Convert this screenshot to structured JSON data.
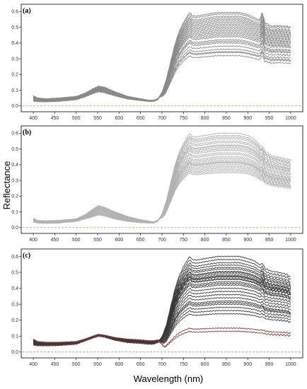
{
  "figure": {
    "ylabel": "Reflectance",
    "xlabel": "Wavelength (nm)"
  },
  "chart_data": [
    {
      "type": "line",
      "panel_label": "(a)",
      "xlim": [
        385,
        1015
      ],
      "ylim": [
        -0.01,
        0.62
      ],
      "xticks": [
        400,
        450,
        500,
        550,
        600,
        650,
        700,
        750,
        800,
        850,
        900,
        950,
        1000
      ],
      "yticks": [
        0.0,
        0.1,
        0.2,
        0.3,
        0.4,
        0.5,
        0.6
      ],
      "line_color": "#8a8a8a",
      "baseline": {
        "y": 0.0,
        "color": "#b5a642",
        "style": "dashed"
      },
      "profile": {
        "x": [
          400,
          410,
          430,
          460,
          500,
          520,
          540,
          552,
          565,
          590,
          620,
          650,
          670,
          680,
          690,
          700,
          710,
          720,
          730,
          740,
          750,
          760,
          765,
          770,
          780,
          800,
          830,
          860,
          880,
          900,
          915,
          925,
          930,
          933,
          940,
          955,
          970,
          990,
          1000
        ],
        "v_low": [
          0.03,
          0.028,
          0.027,
          0.03,
          0.04,
          0.058,
          0.08,
          0.09,
          0.085,
          0.065,
          0.045,
          0.035,
          0.03,
          0.03,
          0.04,
          0.09,
          0.18,
          0.3,
          0.42,
          0.51,
          0.57,
          0.62,
          0.64,
          0.62,
          0.615,
          0.625,
          0.64,
          0.64,
          0.64,
          0.625,
          0.605,
          0.59,
          0.6,
          0.65,
          0.57,
          0.545,
          0.55,
          0.545,
          0.54
        ],
        "v_high": [
          0.065,
          0.05,
          0.045,
          0.05,
          0.06,
          0.08,
          0.11,
          0.125,
          0.12,
          0.09,
          0.06,
          0.045,
          0.035,
          0.035,
          0.045,
          0.09,
          0.18,
          0.3,
          0.42,
          0.51,
          0.57,
          0.62,
          0.64,
          0.62,
          0.615,
          0.625,
          0.64,
          0.64,
          0.64,
          0.625,
          0.605,
          0.59,
          0.6,
          0.65,
          0.57,
          0.545,
          0.55,
          0.545,
          0.54
        ]
      },
      "curve_plateaus": [
        0.595,
        0.585,
        0.57,
        0.56,
        0.55,
        0.54,
        0.53,
        0.52,
        0.51,
        0.5,
        0.49,
        0.48,
        0.47,
        0.46,
        0.45,
        0.44,
        0.42,
        0.41,
        0.4,
        0.38,
        0.36,
        0.345,
        0.34,
        0.32
      ]
    },
    {
      "type": "line",
      "panel_label": "(b)",
      "xlim": [
        385,
        1015
      ],
      "ylim": [
        -0.01,
        0.62
      ],
      "xticks": [
        400,
        450,
        500,
        550,
        600,
        650,
        700,
        750,
        800,
        850,
        900,
        950,
        1000
      ],
      "yticks": [
        0.0,
        0.1,
        0.2,
        0.3,
        0.4,
        0.5,
        0.6
      ],
      "line_color": "#b2b2b2",
      "baseline": {
        "y": 0.0,
        "color": "#b5a642",
        "style": "dashed"
      },
      "profile": {
        "x": [
          400,
          410,
          430,
          460,
          500,
          520,
          540,
          552,
          565,
          590,
          620,
          650,
          670,
          680,
          690,
          700,
          710,
          720,
          730,
          740,
          750,
          760,
          765,
          770,
          780,
          800,
          830,
          860,
          880,
          900,
          915,
          925,
          930,
          933,
          940,
          955,
          970,
          990,
          1000
        ],
        "v_low": [
          0.035,
          0.03,
          0.028,
          0.03,
          0.04,
          0.055,
          0.07,
          0.08,
          0.075,
          0.055,
          0.04,
          0.032,
          0.03,
          0.03,
          0.04,
          0.09,
          0.18,
          0.3,
          0.42,
          0.51,
          0.57,
          0.62,
          0.64,
          0.62,
          0.615,
          0.625,
          0.64,
          0.64,
          0.64,
          0.625,
          0.6,
          0.57,
          0.55,
          0.56,
          0.52,
          0.49,
          0.48,
          0.465,
          0.46
        ],
        "v_high": [
          0.06,
          0.045,
          0.042,
          0.045,
          0.055,
          0.08,
          0.12,
          0.14,
          0.13,
          0.1,
          0.07,
          0.05,
          0.04,
          0.035,
          0.045,
          0.09,
          0.18,
          0.3,
          0.42,
          0.51,
          0.57,
          0.62,
          0.64,
          0.62,
          0.615,
          0.625,
          0.64,
          0.64,
          0.64,
          0.625,
          0.6,
          0.57,
          0.55,
          0.56,
          0.52,
          0.49,
          0.48,
          0.465,
          0.46
        ]
      },
      "curve_plateaus": [
        0.6,
        0.585,
        0.575,
        0.565,
        0.55,
        0.54,
        0.525,
        0.52,
        0.51,
        0.5,
        0.49,
        0.475,
        0.465,
        0.45,
        0.44,
        0.43,
        0.42,
        0.415,
        0.41,
        0.4,
        0.39,
        0.38,
        0.37,
        0.36,
        0.35
      ]
    },
    {
      "type": "line",
      "panel_label": "(c)",
      "xlim": [
        385,
        1015
      ],
      "ylim": [
        -0.01,
        0.62
      ],
      "xticks": [
        400,
        450,
        500,
        550,
        600,
        650,
        700,
        750,
        800,
        850,
        900,
        950,
        1000
      ],
      "yticks": [
        0.0,
        0.1,
        0.2,
        0.3,
        0.4,
        0.5,
        0.6
      ],
      "line_color": "#3a3a3a",
      "highlight_color": "#8b3a3a",
      "baseline": {
        "y": 0.0,
        "color": "#888888",
        "style": "dashed"
      },
      "profile": {
        "x": [
          400,
          410,
          430,
          460,
          500,
          520,
          540,
          552,
          565,
          590,
          620,
          650,
          670,
          680,
          690,
          700,
          710,
          720,
          730,
          740,
          750,
          760,
          765,
          770,
          780,
          800,
          830,
          860,
          880,
          900,
          915,
          925,
          930,
          933,
          940,
          955,
          970,
          990,
          1000
        ],
        "v_low": [
          0.045,
          0.04,
          0.04,
          0.042,
          0.05,
          0.07,
          0.09,
          0.1,
          0.095,
          0.075,
          0.06,
          0.055,
          0.05,
          0.05,
          0.06,
          0.1,
          0.18,
          0.3,
          0.42,
          0.51,
          0.57,
          0.62,
          0.64,
          0.62,
          0.615,
          0.625,
          0.64,
          0.64,
          0.64,
          0.625,
          0.61,
          0.59,
          0.58,
          0.6,
          0.56,
          0.54,
          0.535,
          0.52,
          0.5
        ],
        "v_high": [
          0.08,
          0.065,
          0.06,
          0.06,
          0.065,
          0.08,
          0.1,
          0.11,
          0.105,
          0.09,
          0.08,
          0.075,
          0.07,
          0.07,
          0.075,
          0.1,
          0.18,
          0.3,
          0.42,
          0.51,
          0.57,
          0.62,
          0.64,
          0.62,
          0.615,
          0.625,
          0.64,
          0.64,
          0.64,
          0.625,
          0.61,
          0.59,
          0.58,
          0.6,
          0.56,
          0.54,
          0.535,
          0.52,
          0.5
        ]
      },
      "curve_plateaus": [
        0.6,
        0.58,
        0.56,
        0.545,
        0.53,
        0.52,
        0.505,
        0.5,
        0.49,
        0.48,
        0.475,
        0.47,
        0.46,
        0.455,
        0.44,
        0.43,
        0.42,
        0.4,
        0.38,
        0.36,
        0.34,
        0.32,
        0.31,
        0.3,
        0.28,
        0.26,
        0.24
      ],
      "highlight_plateaus": [
        0.15,
        0.13
      ]
    }
  ]
}
